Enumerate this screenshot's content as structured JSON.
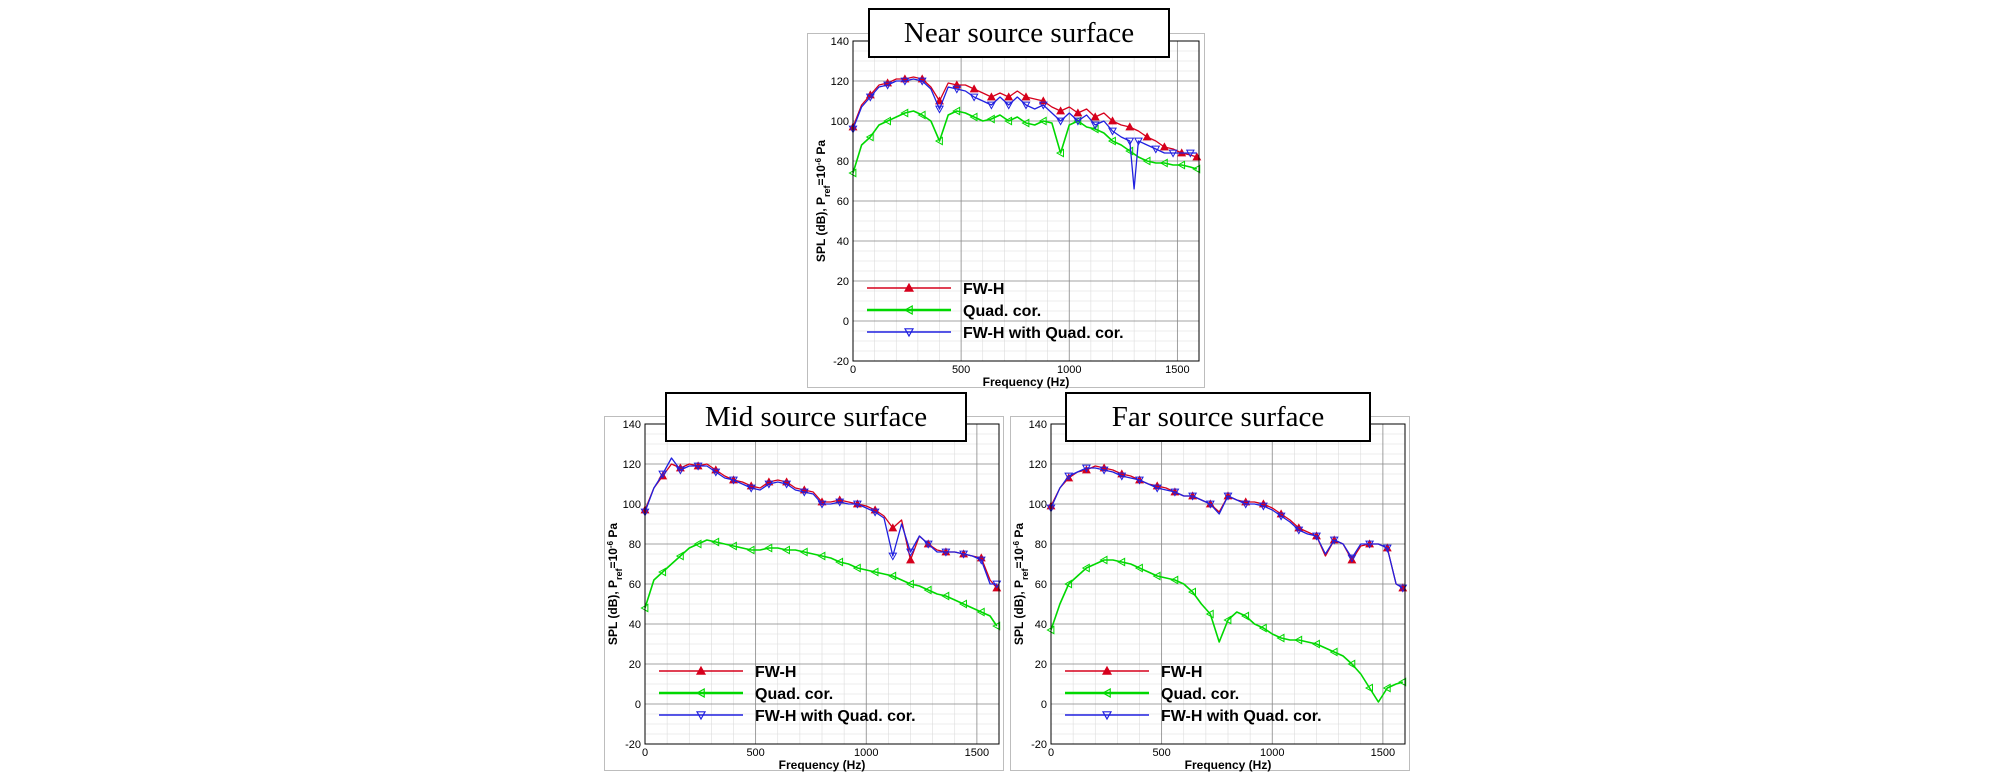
{
  "colors": {
    "fwh": "#d6001c",
    "quad": "#00d800",
    "fwhq": "#2020e0"
  },
  "chart_data": [
    {
      "type": "line",
      "title": "Near source surface",
      "xlabel": "Frequency (Hz)",
      "ylabel": "SPL (dB), P",
      "ylabel_sub": "ref",
      "ylabel_eq": "=10",
      "ylabel_sup": "-6",
      "ylabel_unit": " Pa",
      "xlim": [
        0,
        1600
      ],
      "ylim": [
        -20,
        140
      ],
      "xticks": [
        "0",
        "500",
        "1000",
        "1500"
      ],
      "yticks": [
        "-20",
        "0",
        "20",
        "40",
        "60",
        "80",
        "100",
        "120",
        "140"
      ],
      "grid": true,
      "legend_position": "bottom-left",
      "series": [
        {
          "name": "FW-H",
          "color_key": "fwh",
          "marker": "triangle-up",
          "x": [
            0,
            40,
            80,
            120,
            160,
            200,
            240,
            280,
            320,
            360,
            400,
            440,
            480,
            520,
            560,
            600,
            640,
            680,
            720,
            760,
            800,
            840,
            880,
            920,
            960,
            1000,
            1040,
            1080,
            1120,
            1160,
            1200,
            1240,
            1280,
            1320,
            1360,
            1400,
            1440,
            1480,
            1520,
            1560,
            1590
          ],
          "y": [
            97,
            108,
            113,
            118,
            119,
            121,
            121,
            122,
            121,
            117,
            110,
            119,
            118,
            118,
            116,
            114,
            112,
            114,
            112,
            115,
            112,
            111,
            110,
            107,
            105,
            107,
            104,
            106,
            102,
            104,
            100,
            98,
            97,
            95,
            92,
            90,
            87,
            86,
            84,
            83,
            82
          ]
        },
        {
          "name": "Quad. cor.",
          "color_key": "quad",
          "marker": "triangle-left",
          "x": [
            0,
            40,
            80,
            120,
            160,
            200,
            240,
            280,
            320,
            360,
            400,
            440,
            480,
            520,
            560,
            600,
            640,
            680,
            720,
            760,
            800,
            840,
            880,
            920,
            960,
            1000,
            1040,
            1080,
            1120,
            1160,
            1200,
            1240,
            1280,
            1320,
            1360,
            1400,
            1440,
            1480,
            1520,
            1560,
            1590
          ],
          "y": [
            74,
            88,
            92,
            98,
            100,
            102,
            104,
            105,
            103,
            100,
            90,
            103,
            105,
            104,
            102,
            100,
            101,
            103,
            100,
            102,
            99,
            98,
            100,
            99,
            84,
            98,
            100,
            97,
            96,
            94,
            90,
            88,
            85,
            82,
            80,
            79,
            79,
            78,
            78,
            77,
            76
          ]
        },
        {
          "name": "FW-H with Quad. cor.",
          "color_key": "fwhq",
          "marker": "triangle-down",
          "x": [
            0,
            40,
            80,
            120,
            160,
            200,
            240,
            280,
            320,
            360,
            400,
            440,
            480,
            520,
            560,
            600,
            640,
            680,
            720,
            760,
            800,
            840,
            880,
            920,
            960,
            1000,
            1040,
            1080,
            1120,
            1160,
            1200,
            1240,
            1280,
            1300,
            1320,
            1360,
            1400,
            1440,
            1480,
            1520,
            1560,
            1590
          ],
          "y": [
            96,
            107,
            112,
            117,
            118,
            120,
            120,
            121,
            120,
            116,
            106,
            117,
            116,
            115,
            112,
            110,
            108,
            112,
            108,
            112,
            108,
            106,
            108,
            104,
            100,
            104,
            100,
            103,
            98,
            100,
            95,
            92,
            90,
            66,
            90,
            88,
            86,
            84,
            84,
            84,
            84,
            84
          ]
        }
      ]
    },
    {
      "type": "line",
      "title": "Mid source surface",
      "xlabel": "Frequency (Hz)",
      "ylabel": "SPL (dB), P",
      "ylabel_sub": "ref",
      "ylabel_eq": "=10",
      "ylabel_sup": "-6",
      "ylabel_unit": " Pa",
      "xlim": [
        0,
        1600
      ],
      "ylim": [
        -20,
        140
      ],
      "xticks": [
        "0",
        "500",
        "1000",
        "1500"
      ],
      "yticks": [
        "-20",
        "0",
        "20",
        "40",
        "60",
        "80",
        "100",
        "120",
        "140"
      ],
      "grid": true,
      "legend_position": "bottom-left",
      "series": [
        {
          "name": "FW-H",
          "color_key": "fwh",
          "marker": "triangle-up",
          "x": [
            0,
            40,
            80,
            120,
            160,
            200,
            240,
            280,
            320,
            360,
            400,
            440,
            480,
            520,
            560,
            600,
            640,
            680,
            720,
            760,
            800,
            840,
            880,
            920,
            960,
            1000,
            1040,
            1080,
            1120,
            1160,
            1200,
            1240,
            1280,
            1320,
            1360,
            1400,
            1440,
            1480,
            1520,
            1560,
            1590
          ],
          "y": [
            97,
            108,
            114,
            120,
            118,
            120,
            119,
            120,
            117,
            114,
            112,
            111,
            109,
            108,
            111,
            112,
            111,
            108,
            107,
            106,
            101,
            101,
            102,
            101,
            100,
            99,
            97,
            94,
            88,
            92,
            72,
            84,
            80,
            77,
            76,
            76,
            75,
            74,
            73,
            62,
            58
          ]
        },
        {
          "name": "Quad. cor.",
          "color_key": "quad",
          "marker": "triangle-left",
          "x": [
            0,
            40,
            80,
            120,
            160,
            200,
            240,
            280,
            320,
            360,
            400,
            440,
            480,
            520,
            560,
            600,
            640,
            680,
            720,
            760,
            800,
            840,
            880,
            920,
            960,
            1000,
            1040,
            1080,
            1120,
            1160,
            1200,
            1240,
            1280,
            1320,
            1360,
            1400,
            1440,
            1480,
            1520,
            1560,
            1590
          ],
          "y": [
            48,
            62,
            66,
            70,
            74,
            78,
            80,
            82,
            81,
            80,
            79,
            78,
            77,
            77,
            78,
            78,
            77,
            77,
            76,
            75,
            74,
            73,
            71,
            70,
            68,
            67,
            66,
            65,
            64,
            62,
            60,
            59,
            57,
            55,
            54,
            52,
            50,
            48,
            46,
            44,
            39
          ]
        },
        {
          "name": "FW-H with Quad. cor.",
          "color_key": "fwhq",
          "marker": "triangle-down",
          "x": [
            0,
            40,
            80,
            120,
            160,
            200,
            240,
            280,
            320,
            360,
            400,
            440,
            480,
            520,
            560,
            600,
            640,
            680,
            720,
            760,
            800,
            840,
            880,
            920,
            960,
            1000,
            1040,
            1080,
            1120,
            1160,
            1200,
            1240,
            1280,
            1320,
            1360,
            1400,
            1440,
            1480,
            1520,
            1560,
            1590
          ],
          "y": [
            96,
            108,
            115,
            123,
            117,
            119,
            119,
            119,
            116,
            113,
            112,
            110,
            108,
            107,
            110,
            111,
            110,
            107,
            106,
            105,
            100,
            100,
            101,
            100,
            100,
            98,
            96,
            93,
            74,
            90,
            76,
            84,
            80,
            76,
            76,
            76,
            75,
            74,
            72,
            60,
            60
          ]
        }
      ]
    },
    {
      "type": "line",
      "title": "Far source surface",
      "xlabel": "Frequency (Hz)",
      "ylabel": "SPL (dB), P",
      "ylabel_sub": "ref",
      "ylabel_eq": "=10",
      "ylabel_sup": "-6",
      "ylabel_unit": " Pa",
      "xlim": [
        0,
        1600
      ],
      "ylim": [
        -20,
        140
      ],
      "xticks": [
        "0",
        "500",
        "1000",
        "1500"
      ],
      "yticks": [
        "-20",
        "0",
        "20",
        "40",
        "60",
        "80",
        "100",
        "120",
        "140"
      ],
      "grid": true,
      "legend_position": "bottom-left",
      "series": [
        {
          "name": "FW-H",
          "color_key": "fwh",
          "marker": "triangle-up",
          "x": [
            0,
            40,
            80,
            120,
            160,
            200,
            240,
            280,
            320,
            360,
            400,
            440,
            480,
            520,
            560,
            600,
            640,
            680,
            720,
            760,
            800,
            840,
            880,
            920,
            960,
            1000,
            1040,
            1080,
            1120,
            1160,
            1200,
            1240,
            1280,
            1320,
            1360,
            1400,
            1440,
            1480,
            1520,
            1560,
            1590
          ],
          "y": [
            99,
            108,
            113,
            116,
            117,
            119,
            118,
            117,
            115,
            114,
            112,
            110,
            109,
            108,
            106,
            104,
            104,
            102,
            100,
            96,
            104,
            102,
            101,
            101,
            100,
            98,
            95,
            92,
            88,
            86,
            84,
            74,
            82,
            80,
            72,
            79,
            80,
            80,
            78,
            60,
            58
          ]
        },
        {
          "name": "Quad. cor.",
          "color_key": "quad",
          "marker": "triangle-left",
          "x": [
            0,
            40,
            80,
            120,
            160,
            200,
            240,
            280,
            320,
            360,
            400,
            440,
            480,
            520,
            560,
            600,
            640,
            680,
            720,
            760,
            800,
            840,
            880,
            920,
            960,
            1000,
            1040,
            1080,
            1120,
            1160,
            1200,
            1240,
            1280,
            1320,
            1360,
            1400,
            1440,
            1480,
            1520,
            1560,
            1590
          ],
          "y": [
            37,
            50,
            60,
            64,
            68,
            70,
            72,
            72,
            71,
            70,
            68,
            66,
            64,
            63,
            62,
            60,
            56,
            50,
            45,
            31,
            42,
            46,
            44,
            40,
            38,
            35,
            33,
            32,
            32,
            31,
            30,
            28,
            26,
            24,
            20,
            15,
            8,
            1,
            8,
            10,
            11
          ]
        },
        {
          "name": "FW-H with Quad. cor.",
          "color_key": "fwhq",
          "marker": "triangle-down",
          "x": [
            0,
            40,
            80,
            120,
            160,
            200,
            240,
            280,
            320,
            360,
            400,
            440,
            480,
            520,
            560,
            600,
            640,
            680,
            720,
            760,
            800,
            840,
            880,
            920,
            960,
            1000,
            1040,
            1080,
            1120,
            1160,
            1200,
            1240,
            1280,
            1320,
            1360,
            1400,
            1440,
            1480,
            1520,
            1560,
            1590
          ],
          "y": [
            98,
            108,
            114,
            116,
            118,
            118,
            117,
            116,
            114,
            113,
            112,
            110,
            108,
            107,
            106,
            104,
            104,
            102,
            100,
            95,
            104,
            102,
            100,
            100,
            99,
            97,
            94,
            91,
            87,
            85,
            84,
            75,
            82,
            80,
            73,
            80,
            80,
            80,
            78,
            60,
            58
          ]
        }
      ]
    }
  ]
}
